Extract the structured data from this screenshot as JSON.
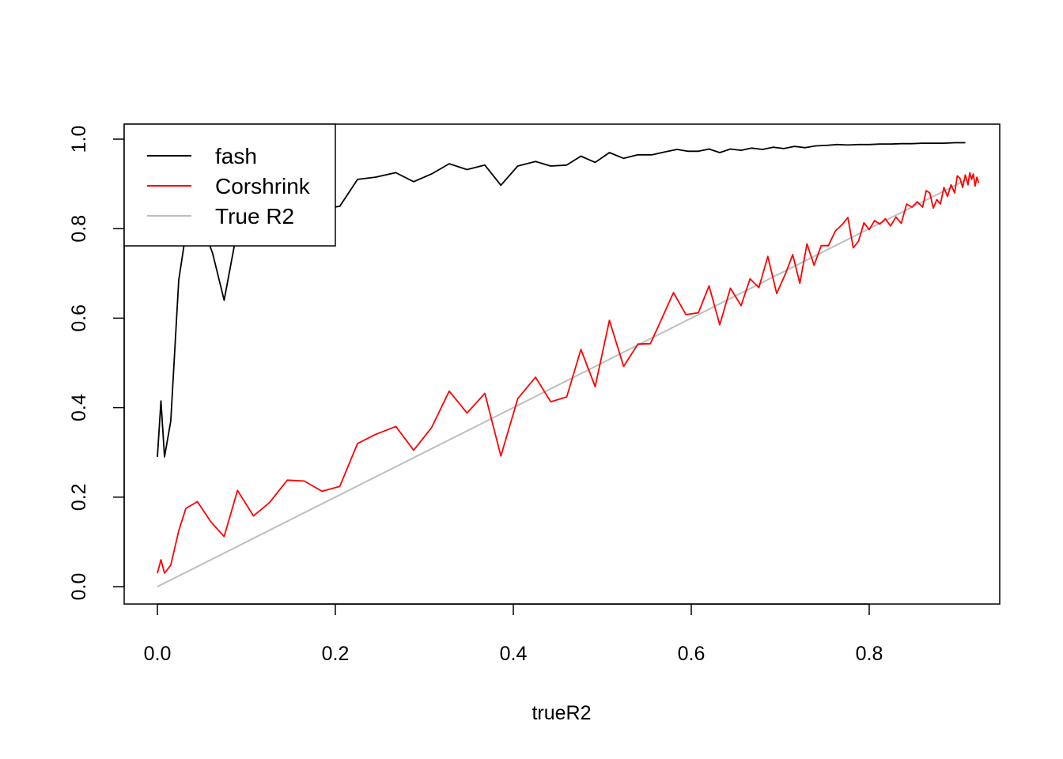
{
  "chart_data": {
    "type": "line",
    "title": "",
    "xlabel": "trueR2",
    "ylabel": "",
    "xlim": [
      0,
      0.91
    ],
    "ylim": [
      0,
      1
    ],
    "x_ticks": [
      "0.0",
      "0.2",
      "0.4",
      "0.6",
      "0.8"
    ],
    "y_ticks": [
      "0.0",
      "0.2",
      "0.4",
      "0.6",
      "0.8",
      "1.0"
    ],
    "grid": false,
    "legend_position": "top-left",
    "series": [
      {
        "name": "fash",
        "color": "#000000",
        "points": [
          [
            0.0,
            0.29
          ],
          [
            0.004,
            0.415
          ],
          [
            0.008,
            0.29
          ],
          [
            0.015,
            0.37
          ],
          [
            0.024,
            0.685
          ],
          [
            0.032,
            0.79
          ],
          [
            0.048,
            0.82
          ],
          [
            0.062,
            0.745
          ],
          [
            0.075,
            0.64
          ],
          [
            0.09,
            0.8
          ],
          [
            0.11,
            0.82
          ],
          [
            0.13,
            0.84
          ],
          [
            0.15,
            0.845
          ],
          [
            0.17,
            0.85
          ],
          [
            0.19,
            0.845
          ],
          [
            0.205,
            0.85
          ],
          [
            0.225,
            0.91
          ],
          [
            0.245,
            0.915
          ],
          [
            0.268,
            0.925
          ],
          [
            0.288,
            0.905
          ],
          [
            0.308,
            0.922
          ],
          [
            0.328,
            0.945
          ],
          [
            0.348,
            0.932
          ],
          [
            0.368,
            0.942
          ],
          [
            0.386,
            0.897
          ],
          [
            0.405,
            0.94
          ],
          [
            0.425,
            0.95
          ],
          [
            0.442,
            0.94
          ],
          [
            0.46,
            0.942
          ],
          [
            0.476,
            0.962
          ],
          [
            0.492,
            0.948
          ],
          [
            0.508,
            0.97
          ],
          [
            0.524,
            0.957
          ],
          [
            0.54,
            0.965
          ],
          [
            0.556,
            0.965
          ],
          [
            0.572,
            0.972
          ],
          [
            0.584,
            0.977
          ],
          [
            0.596,
            0.973
          ],
          [
            0.608,
            0.973
          ],
          [
            0.62,
            0.978
          ],
          [
            0.632,
            0.97
          ],
          [
            0.644,
            0.978
          ],
          [
            0.656,
            0.975
          ],
          [
            0.668,
            0.98
          ],
          [
            0.68,
            0.977
          ],
          [
            0.692,
            0.982
          ],
          [
            0.704,
            0.979
          ],
          [
            0.716,
            0.984
          ],
          [
            0.728,
            0.981
          ],
          [
            0.74,
            0.985
          ],
          [
            0.752,
            0.986
          ],
          [
            0.764,
            0.988
          ],
          [
            0.776,
            0.987
          ],
          [
            0.788,
            0.988
          ],
          [
            0.8,
            0.988
          ],
          [
            0.812,
            0.989
          ],
          [
            0.824,
            0.989
          ],
          [
            0.836,
            0.99
          ],
          [
            0.848,
            0.99
          ],
          [
            0.86,
            0.991
          ],
          [
            0.872,
            0.991
          ],
          [
            0.884,
            0.991
          ],
          [
            0.896,
            0.992
          ],
          [
            0.908,
            0.992
          ]
        ]
      },
      {
        "name": "Corshrink",
        "color": "#ff0000",
        "points": [
          [
            0.0,
            0.03
          ],
          [
            0.004,
            0.06
          ],
          [
            0.008,
            0.03
          ],
          [
            0.015,
            0.048
          ],
          [
            0.024,
            0.125
          ],
          [
            0.032,
            0.175
          ],
          [
            0.045,
            0.19
          ],
          [
            0.06,
            0.145
          ],
          [
            0.075,
            0.112
          ],
          [
            0.09,
            0.215
          ],
          [
            0.108,
            0.158
          ],
          [
            0.126,
            0.188
          ],
          [
            0.146,
            0.238
          ],
          [
            0.165,
            0.236
          ],
          [
            0.185,
            0.213
          ],
          [
            0.205,
            0.224
          ],
          [
            0.225,
            0.32
          ],
          [
            0.245,
            0.34
          ],
          [
            0.268,
            0.358
          ],
          [
            0.288,
            0.305
          ],
          [
            0.308,
            0.355
          ],
          [
            0.328,
            0.437
          ],
          [
            0.348,
            0.388
          ],
          [
            0.368,
            0.432
          ],
          [
            0.386,
            0.292
          ],
          [
            0.405,
            0.42
          ],
          [
            0.425,
            0.468
          ],
          [
            0.442,
            0.413
          ],
          [
            0.46,
            0.424
          ],
          [
            0.476,
            0.53
          ],
          [
            0.492,
            0.447
          ],
          [
            0.508,
            0.595
          ],
          [
            0.524,
            0.492
          ],
          [
            0.54,
            0.542
          ],
          [
            0.554,
            0.543
          ],
          [
            0.566,
            0.595
          ],
          [
            0.58,
            0.657
          ],
          [
            0.594,
            0.608
          ],
          [
            0.608,
            0.612
          ],
          [
            0.62,
            0.672
          ],
          [
            0.632,
            0.585
          ],
          [
            0.644,
            0.667
          ],
          [
            0.656,
            0.628
          ],
          [
            0.666,
            0.688
          ],
          [
            0.676,
            0.668
          ],
          [
            0.686,
            0.738
          ],
          [
            0.696,
            0.655
          ],
          [
            0.706,
            0.7
          ],
          [
            0.714,
            0.742
          ],
          [
            0.722,
            0.678
          ],
          [
            0.73,
            0.766
          ],
          [
            0.738,
            0.718
          ],
          [
            0.746,
            0.762
          ],
          [
            0.754,
            0.762
          ],
          [
            0.762,
            0.795
          ],
          [
            0.77,
            0.81
          ],
          [
            0.776,
            0.825
          ],
          [
            0.782,
            0.757
          ],
          [
            0.788,
            0.772
          ],
          [
            0.794,
            0.813
          ],
          [
            0.8,
            0.798
          ],
          [
            0.806,
            0.818
          ],
          [
            0.812,
            0.81
          ],
          [
            0.818,
            0.822
          ],
          [
            0.824,
            0.806
          ],
          [
            0.83,
            0.826
          ],
          [
            0.836,
            0.812
          ],
          [
            0.842,
            0.855
          ],
          [
            0.848,
            0.848
          ],
          [
            0.854,
            0.86
          ],
          [
            0.86,
            0.848
          ],
          [
            0.864,
            0.885
          ],
          [
            0.868,
            0.88
          ],
          [
            0.872,
            0.846
          ],
          [
            0.876,
            0.865
          ],
          [
            0.88,
            0.855
          ],
          [
            0.884,
            0.892
          ],
          [
            0.888,
            0.872
          ],
          [
            0.892,
            0.898
          ],
          [
            0.896,
            0.88
          ],
          [
            0.899,
            0.918
          ],
          [
            0.902,
            0.912
          ],
          [
            0.905,
            0.892
          ],
          [
            0.908,
            0.92
          ],
          [
            0.911,
            0.898
          ],
          [
            0.913,
            0.925
          ],
          [
            0.915,
            0.91
          ],
          [
            0.917,
            0.922
          ],
          [
            0.919,
            0.895
          ],
          [
            0.921,
            0.915
          ],
          [
            0.923,
            0.902
          ]
        ]
      },
      {
        "name": "True R2",
        "color": "#bebebe",
        "points": [
          [
            0.0,
            0.0
          ],
          [
            0.91,
            0.91
          ]
        ]
      }
    ]
  }
}
